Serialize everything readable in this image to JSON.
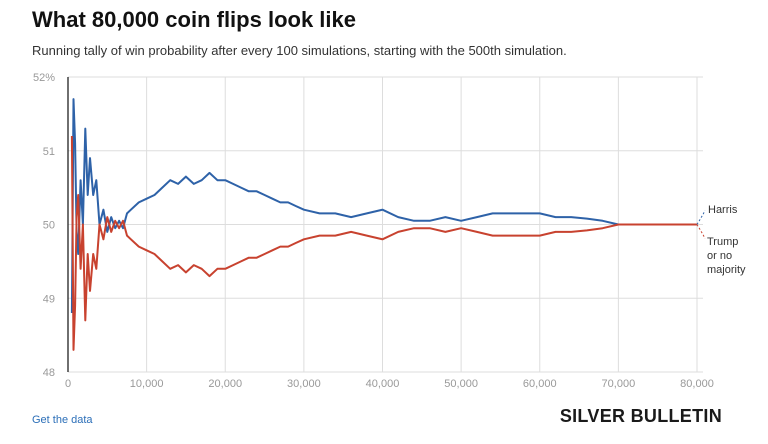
{
  "header": {
    "title": "What 80,000 coin flips look like",
    "subtitle": "Running tally of win probability after every 100 simulations, starting with the 500th simulation."
  },
  "footer": {
    "link_label": "Get the data",
    "brand": "SILVER BULLETIN"
  },
  "colors": {
    "harris": "#2e62a8",
    "trump": "#c8422f",
    "grid": "#dddddd",
    "axis_text": "#999999"
  },
  "chart_data": {
    "type": "line",
    "title": "What 80,000 coin flips look like",
    "subtitle": "Running tally of win probability after every 100 simulations, starting with the 500th simulation.",
    "xlabel": "",
    "ylabel": "",
    "xlim": [
      0,
      80000
    ],
    "ylim": [
      48,
      52
    ],
    "x_ticks": [
      0,
      10000,
      20000,
      30000,
      40000,
      50000,
      60000,
      70000,
      80000
    ],
    "x_tick_labels": [
      "0",
      "10,000",
      "20,000",
      "30,000",
      "40,000",
      "50,000",
      "60,000",
      "70,000",
      "80,000"
    ],
    "y_ticks": [
      48,
      49,
      50,
      51,
      52
    ],
    "y_tick_labels": [
      "48",
      "49",
      "50",
      "51",
      "52%"
    ],
    "grid": true,
    "series_labels_placement": "right end of lines",
    "series": [
      {
        "name": "Harris",
        "color": "#2e62a8",
        "points": [
          [
            500,
            48.8
          ],
          [
            700,
            51.7
          ],
          [
            900,
            51.1
          ],
          [
            1100,
            49.9
          ],
          [
            1300,
            49.6
          ],
          [
            1600,
            50.6
          ],
          [
            1900,
            50.0
          ],
          [
            2200,
            51.3
          ],
          [
            2500,
            50.4
          ],
          [
            2800,
            50.9
          ],
          [
            3200,
            50.4
          ],
          [
            3600,
            50.6
          ],
          [
            4000,
            50.0
          ],
          [
            4500,
            50.2
          ],
          [
            5000,
            49.9
          ],
          [
            5500,
            50.1
          ],
          [
            6000,
            49.95
          ],
          [
            6500,
            50.05
          ],
          [
            7000,
            49.95
          ],
          [
            7500,
            50.15
          ],
          [
            8000,
            50.2
          ],
          [
            9000,
            50.3
          ],
          [
            10000,
            50.35
          ],
          [
            11000,
            50.4
          ],
          [
            12000,
            50.5
          ],
          [
            13000,
            50.6
          ],
          [
            14000,
            50.55
          ],
          [
            15000,
            50.65
          ],
          [
            16000,
            50.55
          ],
          [
            17000,
            50.6
          ],
          [
            18000,
            50.7
          ],
          [
            19000,
            50.6
          ],
          [
            20000,
            50.6
          ],
          [
            21000,
            50.55
          ],
          [
            22000,
            50.5
          ],
          [
            23000,
            50.45
          ],
          [
            24000,
            50.45
          ],
          [
            25000,
            50.4
          ],
          [
            26000,
            50.35
          ],
          [
            27000,
            50.3
          ],
          [
            28000,
            50.3
          ],
          [
            29000,
            50.25
          ],
          [
            30000,
            50.2
          ],
          [
            32000,
            50.15
          ],
          [
            34000,
            50.15
          ],
          [
            36000,
            50.1
          ],
          [
            38000,
            50.15
          ],
          [
            40000,
            50.2
          ],
          [
            42000,
            50.1
          ],
          [
            44000,
            50.05
          ],
          [
            46000,
            50.05
          ],
          [
            48000,
            50.1
          ],
          [
            50000,
            50.05
          ],
          [
            52000,
            50.1
          ],
          [
            54000,
            50.15
          ],
          [
            56000,
            50.15
          ],
          [
            58000,
            50.15
          ],
          [
            60000,
            50.15
          ],
          [
            62000,
            50.1
          ],
          [
            64000,
            50.1
          ],
          [
            66000,
            50.08
          ],
          [
            68000,
            50.05
          ],
          [
            70000,
            50.0
          ],
          [
            72000,
            50.0
          ],
          [
            74000,
            50.0
          ],
          [
            76000,
            50.0
          ],
          [
            78000,
            50.0
          ],
          [
            80000,
            50.0
          ]
        ]
      },
      {
        "name": "Trump or no majority",
        "color": "#c8422f",
        "points": [
          [
            500,
            51.2
          ],
          [
            700,
            48.3
          ],
          [
            900,
            48.9
          ],
          [
            1100,
            50.1
          ],
          [
            1300,
            50.4
          ],
          [
            1600,
            49.4
          ],
          [
            1900,
            50.0
          ],
          [
            2200,
            48.7
          ],
          [
            2500,
            49.6
          ],
          [
            2800,
            49.1
          ],
          [
            3200,
            49.6
          ],
          [
            3600,
            49.4
          ],
          [
            4000,
            50.0
          ],
          [
            4500,
            49.8
          ],
          [
            5000,
            50.1
          ],
          [
            5500,
            49.9
          ],
          [
            6000,
            50.05
          ],
          [
            6500,
            49.95
          ],
          [
            7000,
            50.05
          ],
          [
            7500,
            49.85
          ],
          [
            8000,
            49.8
          ],
          [
            9000,
            49.7
          ],
          [
            10000,
            49.65
          ],
          [
            11000,
            49.6
          ],
          [
            12000,
            49.5
          ],
          [
            13000,
            49.4
          ],
          [
            14000,
            49.45
          ],
          [
            15000,
            49.35
          ],
          [
            16000,
            49.45
          ],
          [
            17000,
            49.4
          ],
          [
            18000,
            49.3
          ],
          [
            19000,
            49.4
          ],
          [
            20000,
            49.4
          ],
          [
            21000,
            49.45
          ],
          [
            22000,
            49.5
          ],
          [
            23000,
            49.55
          ],
          [
            24000,
            49.55
          ],
          [
            25000,
            49.6
          ],
          [
            26000,
            49.65
          ],
          [
            27000,
            49.7
          ],
          [
            28000,
            49.7
          ],
          [
            29000,
            49.75
          ],
          [
            30000,
            49.8
          ],
          [
            32000,
            49.85
          ],
          [
            34000,
            49.85
          ],
          [
            36000,
            49.9
          ],
          [
            38000,
            49.85
          ],
          [
            40000,
            49.8
          ],
          [
            42000,
            49.9
          ],
          [
            44000,
            49.95
          ],
          [
            46000,
            49.95
          ],
          [
            48000,
            49.9
          ],
          [
            50000,
            49.95
          ],
          [
            52000,
            49.9
          ],
          [
            54000,
            49.85
          ],
          [
            56000,
            49.85
          ],
          [
            58000,
            49.85
          ],
          [
            60000,
            49.85
          ],
          [
            62000,
            49.9
          ],
          [
            64000,
            49.9
          ],
          [
            66000,
            49.92
          ],
          [
            68000,
            49.95
          ],
          [
            70000,
            50.0
          ],
          [
            72000,
            50.0
          ],
          [
            74000,
            50.0
          ],
          [
            76000,
            50.0
          ],
          [
            78000,
            50.0
          ],
          [
            80000,
            50.0
          ]
        ]
      }
    ],
    "end_labels": {
      "harris": [
        "Harris"
      ],
      "trump": [
        "Trump",
        "or no",
        "majority"
      ]
    }
  }
}
